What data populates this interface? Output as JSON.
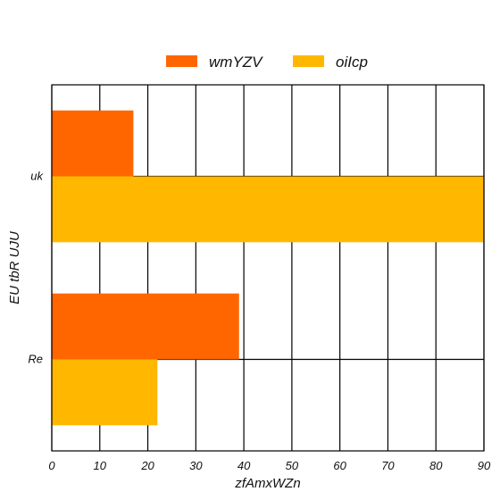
{
  "chart_data": {
    "type": "bar",
    "orientation": "horizontal",
    "categories": [
      "uk",
      "Re"
    ],
    "series": [
      {
        "name": "wmYZV",
        "values": [
          17,
          39
        ],
        "color": "#ff6600"
      },
      {
        "name": "oiIcp",
        "values": [
          90,
          22
        ],
        "color": "#ffb700"
      }
    ],
    "xlabel": "zfAmxWZn",
    "ylabel": "EU tbR UJU",
    "xlim": [
      0,
      90
    ],
    "xticks": [
      "0",
      "10",
      "20",
      "30",
      "40",
      "50",
      "60",
      "70",
      "80",
      "90"
    ],
    "grid": true,
    "legend_position": "top-center"
  }
}
